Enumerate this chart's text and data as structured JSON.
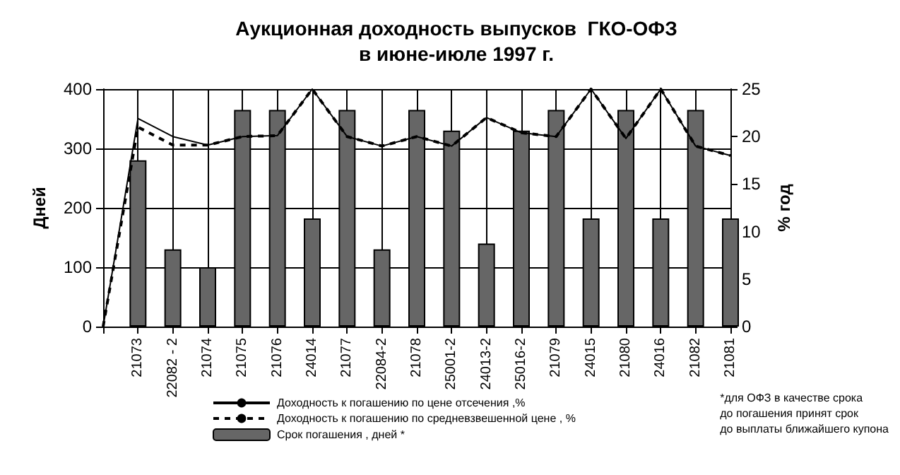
{
  "chart_data": {
    "type": "bar",
    "title": "Аукционная доходность выпусков  ГКО-ОФЗ\nв июне-июле 1997 г.",
    "categories": [
      null,
      "21073",
      "22082 - 2",
      "21074",
      "21075",
      "21076",
      "24014",
      "21077",
      "22084-2",
      "21078",
      "25001-2",
      "24013-2",
      "25016-2",
      "21079",
      "24015",
      "21080",
      "24016",
      "21082",
      "21081"
    ],
    "series": [
      {
        "name": "Доходность к погашению по цене отсечения ,%",
        "type": "line",
        "axis": "y2",
        "color": "#000000",
        "line_style": "solid",
        "values": [
          0,
          21.9,
          20,
          19.1,
          20,
          20.1,
          25,
          20,
          19,
          20,
          19,
          22,
          20.4,
          20,
          25,
          19.8,
          25,
          19,
          18
        ]
      },
      {
        "name": "Доходность к погашению по средневзвешенной цене , %",
        "type": "line",
        "axis": "y2",
        "color": "#000000",
        "line_style": "dashed",
        "values": [
          0,
          21,
          19.1,
          19.1,
          20,
          20.1,
          25,
          20,
          19,
          20,
          19,
          22,
          20.4,
          20,
          25,
          19.8,
          25,
          19,
          18
        ]
      },
      {
        "name": "Срок погашения , дней *",
        "color": "#666666",
        "values": [
          null,
          280,
          130,
          100,
          365,
          365,
          182,
          365,
          130,
          365,
          330,
          140,
          330,
          365,
          182,
          365,
          182,
          365,
          182
        ]
      }
    ],
    "ylabel": "Дней",
    "y2label": "% год",
    "ylim": [
      0,
      400
    ],
    "yticks": [
      0,
      100,
      200,
      300,
      400
    ],
    "y2lim": [
      0,
      25
    ],
    "y2ticks": [
      0,
      5,
      10,
      15,
      20,
      25
    ],
    "grid": true,
    "legend": "bottom",
    "annotations": [
      "*для ОФЗ в качестве срока\nдо погашения принят срок\nдо выплаты ближайшего купона"
    ]
  }
}
